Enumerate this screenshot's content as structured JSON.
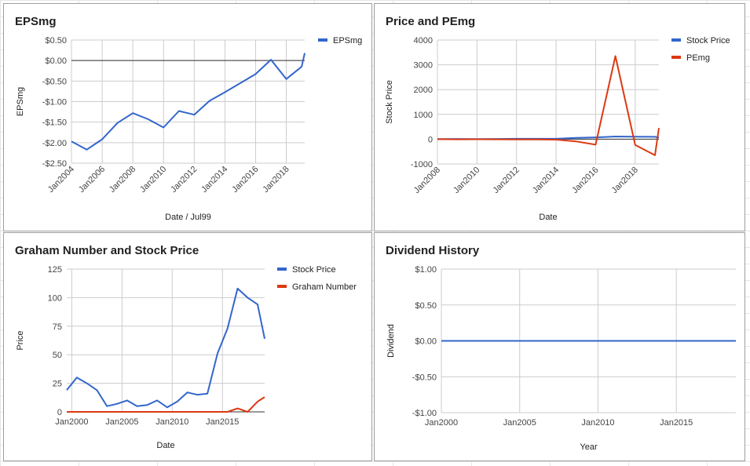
{
  "colors": {
    "blue": "#3366cc",
    "red": "#dc3912"
  },
  "chart_data": [
    {
      "id": "eps",
      "type": "line",
      "title": "EPSmg",
      "xlabel": "Date / Jul99",
      "ylabel": "EPSmg",
      "xlim": [
        2004,
        2019.2
      ],
      "ylim": [
        -2.5,
        0.5
      ],
      "yticks": [
        0.5,
        0,
        -0.5,
        -1,
        -1.5,
        -2,
        -2.5
      ],
      "ytick_labels": [
        "$0.50",
        "$0.00",
        "-$0.50",
        "-$1.00",
        "-$1.50",
        "-$2.00",
        "-$2.50"
      ],
      "xticks": [
        2004,
        2006,
        2008,
        2010,
        2012,
        2014,
        2016,
        2018
      ],
      "xtick_labels": [
        "Jan2004",
        "Jan2006",
        "Jan2008",
        "Jan2010",
        "Jan2012",
        "Jan2014",
        "Jan2016",
        "Jan2018"
      ],
      "legend": "right",
      "series": [
        {
          "name": "EPSmg",
          "color": "#3366cc",
          "x": [
            2004,
            2005,
            2006,
            2007,
            2008,
            2009,
            2010,
            2011,
            2012,
            2013,
            2014,
            2015,
            2016,
            2017,
            2018,
            2019,
            2019.2
          ],
          "y": [
            -1.97,
            -2.17,
            -1.92,
            -1.52,
            -1.28,
            -1.43,
            -1.63,
            -1.23,
            -1.32,
            -0.98,
            -0.77,
            -0.55,
            -0.33,
            0.02,
            -0.45,
            -0.15,
            0.18
          ]
        }
      ]
    },
    {
      "id": "pe",
      "type": "line",
      "title": "Price and PEmg",
      "xlabel": "Date",
      "ylabel": "Stock Price",
      "xlim": [
        2008,
        2019.2
      ],
      "ylim": [
        -1000,
        4000
      ],
      "yticks": [
        4000,
        3000,
        2000,
        1000,
        0,
        -1000
      ],
      "ytick_labels": [
        "4000",
        "3000",
        "2000",
        "1000",
        "0",
        "-1000"
      ],
      "xticks": [
        2008,
        2010,
        2012,
        2014,
        2016,
        2018
      ],
      "xtick_labels": [
        "Jan2008",
        "Jan2010",
        "Jan2012",
        "Jan2014",
        "Jan2016",
        "Jan2018"
      ],
      "legend": "right",
      "series": [
        {
          "name": "Stock Price",
          "color": "#3366cc",
          "x": [
            2008,
            2009,
            2010,
            2011,
            2012,
            2013,
            2014,
            2015,
            2016,
            2017,
            2018,
            2019,
            2019.2
          ],
          "y": [
            5,
            10,
            4,
            9,
            17,
            15,
            16,
            51,
            73,
            108,
            100,
            94,
            64
          ]
        },
        {
          "name": "PEmg",
          "color": "#dc3912",
          "x": [
            2008,
            2009,
            2010,
            2011,
            2012,
            2013,
            2014,
            2015,
            2016,
            2017,
            2018,
            2019,
            2019.2
          ],
          "y": [
            0,
            -5,
            -3,
            -7,
            -12,
            -14,
            -20,
            -90,
            -220,
            3350,
            -230,
            -650,
            450
          ]
        }
      ]
    },
    {
      "id": "graham",
      "type": "line",
      "title": "Graham Number and Stock Price",
      "xlabel": "Date",
      "ylabel": "Price",
      "xlim": [
        1999.5,
        2019.2
      ],
      "ylim": [
        0,
        125
      ],
      "yticks": [
        125,
        100,
        75,
        50,
        25,
        0
      ],
      "ytick_labels": [
        "125",
        "100",
        "75",
        "50",
        "25",
        "0"
      ],
      "xticks": [
        2000,
        2005,
        2010,
        2015
      ],
      "xtick_labels": [
        "Jan2000",
        "Jan2005",
        "Jan2010",
        "Jan2015"
      ],
      "legend": "right",
      "series": [
        {
          "name": "Stock Price",
          "color": "#3366cc",
          "x": [
            1999.5,
            2000.5,
            2001.5,
            2002.5,
            2003.5,
            2004.5,
            2005.5,
            2006.5,
            2007.5,
            2008.5,
            2009.5,
            2010.5,
            2011.5,
            2012.5,
            2013.5,
            2014.5,
            2015.5,
            2016.5,
            2017.5,
            2018.5,
            2019.2
          ],
          "y": [
            19,
            30,
            25,
            19,
            5,
            7,
            10,
            5,
            6,
            10,
            4,
            9,
            17,
            15,
            16,
            51,
            73,
            108,
            100,
            94,
            64
          ]
        },
        {
          "name": "Graham Number",
          "color": "#dc3912",
          "x": [
            1999.5,
            2000.5,
            2001.5,
            2002.5,
            2003.5,
            2004.5,
            2005.5,
            2006.5,
            2007.5,
            2008.5,
            2009.5,
            2010.5,
            2011.5,
            2012.5,
            2013.5,
            2014.5,
            2015.5,
            2016.5,
            2017.5,
            2018.5,
            2019.2
          ],
          "y": [
            0,
            0,
            0,
            0,
            0,
            0,
            0,
            0,
            0,
            0,
            0,
            0,
            0,
            0,
            0,
            0,
            0,
            3,
            0,
            9,
            13
          ]
        }
      ]
    },
    {
      "id": "div",
      "type": "line",
      "title": "Dividend History",
      "xlabel": "Year",
      "ylabel": "Dividend",
      "xlim": [
        2000,
        2018.8
      ],
      "ylim": [
        -1,
        1
      ],
      "yticks": [
        1,
        0.5,
        0,
        -0.5,
        -1
      ],
      "ytick_labels": [
        "$1.00",
        "$0.50",
        "$0.00",
        "-$0.50",
        "-$1.00"
      ],
      "xticks": [
        2000,
        2005,
        2010,
        2015
      ],
      "xtick_labels": [
        "Jan2000",
        "Jan2005",
        "Jan2010",
        "Jan2015"
      ],
      "legend": "none",
      "series": [
        {
          "name": "",
          "color": "#3366cc",
          "x": [
            2000,
            2018.8
          ],
          "y": [
            0,
            0
          ]
        }
      ]
    }
  ]
}
